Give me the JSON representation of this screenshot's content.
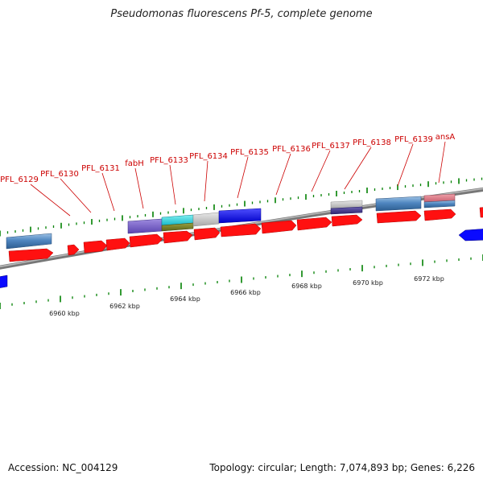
{
  "title": "Pseudomonas fluorescens Pf-5, complete genome",
  "footer": {
    "accession": "Accession: NC_004129",
    "summary": "Topology: circular; Length: 7,074,893 bp; Genes: 6,226"
  },
  "colors": {
    "backbone": "#8f8f8f",
    "gene_forward": "#ff0000",
    "gene_reverse": "#0000ff",
    "label": "#cc0000",
    "tick": "#008000",
    "scale_text": "#222222"
  },
  "scale_labels": [
    "6960 kbp",
    "6962 kbp",
    "6964 kbp",
    "6966 kbp",
    "6968 kbp",
    "6970 kbp",
    "6972 kbp"
  ],
  "gene_labels": [
    "PFL_6129",
    "PFL_6130",
    "PFL_6131",
    "fabH",
    "PFL_6133",
    "PFL_6134",
    "PFL_6135",
    "PFL_6136",
    "PFL_6137",
    "PFL_6138",
    "PFL_6139",
    "ansA"
  ]
}
